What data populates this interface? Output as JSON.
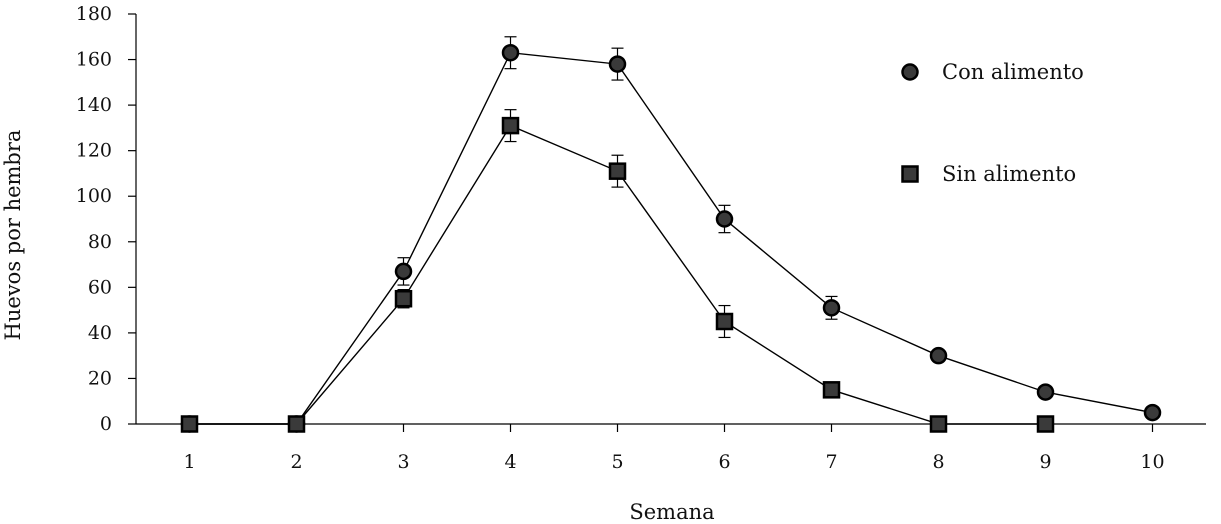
{
  "chart_data": {
    "type": "line",
    "title": "",
    "xlabel": "Semana",
    "ylabel": "Huevos por hembra",
    "x": [
      1,
      2,
      3,
      4,
      5,
      6,
      7,
      8,
      9,
      10
    ],
    "xlim": [
      0.5,
      10.5
    ],
    "ylim": [
      0,
      180
    ],
    "yticks": [
      0,
      20,
      40,
      60,
      80,
      100,
      120,
      140,
      160,
      180
    ],
    "grid": false,
    "legend": "top-right",
    "colors": {
      "series": "#000000",
      "marker_fill": "#3a3a3a"
    },
    "series": [
      {
        "name": "Con alimento",
        "marker": "circle",
        "x": [
          1,
          2,
          3,
          4,
          5,
          6,
          7,
          8,
          9,
          10
        ],
        "values": [
          0,
          0,
          67,
          163,
          158,
          90,
          51,
          30,
          14,
          5
        ],
        "errors": [
          0,
          0,
          6,
          7,
          7,
          6,
          5,
          0,
          0,
          0
        ]
      },
      {
        "name": "Sin alimento",
        "marker": "square",
        "x": [
          1,
          2,
          3,
          4,
          5,
          6,
          7,
          8,
          9
        ],
        "values": [
          0,
          0,
          55,
          131,
          111,
          45,
          15,
          0,
          0
        ],
        "errors": [
          0,
          0,
          4,
          7,
          7,
          7,
          0,
          0,
          0
        ]
      }
    ]
  }
}
